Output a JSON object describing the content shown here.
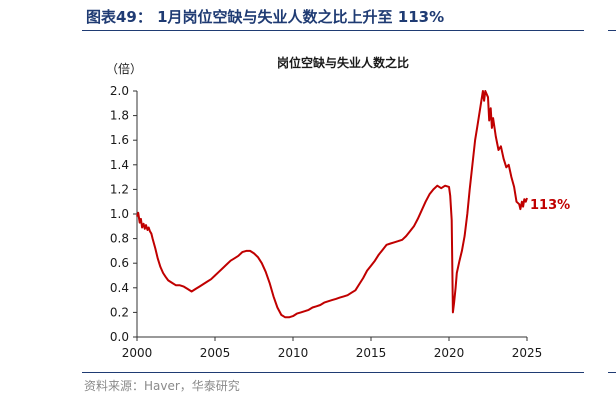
{
  "figure": {
    "title": "图表49： 1月岗位空缺与失业人数之比上升至 113%",
    "source": "资料来源：Haver，华泰研究"
  },
  "chart_data": {
    "type": "line",
    "title": "岗位空缺与失业人数之比",
    "ylabel": "（倍）",
    "xlim": [
      2000,
      2025
    ],
    "ylim": [
      0,
      2.0
    ],
    "xticks": [
      "2000",
      "2005",
      "2010",
      "2015",
      "2020",
      "2025"
    ],
    "yticks": [
      "0.0",
      "0.2",
      "0.4",
      "0.6",
      "0.8",
      "1.0",
      "1.2",
      "1.4",
      "1.6",
      "1.8",
      "2.0"
    ],
    "annotation": "113%",
    "series": [
      {
        "color": "#c00000",
        "points": [
          [
            2000.0,
            0.98
          ],
          [
            2000.08,
            1.01
          ],
          [
            2000.17,
            0.93
          ],
          [
            2000.25,
            0.96
          ],
          [
            2000.33,
            0.89
          ],
          [
            2000.42,
            0.92
          ],
          [
            2000.5,
            0.88
          ],
          [
            2000.58,
            0.91
          ],
          [
            2000.67,
            0.87
          ],
          [
            2000.75,
            0.89
          ],
          [
            2000.83,
            0.86
          ],
          [
            2000.92,
            0.84
          ],
          [
            2001.0,
            0.8
          ],
          [
            2001.17,
            0.72
          ],
          [
            2001.33,
            0.64
          ],
          [
            2001.5,
            0.57
          ],
          [
            2001.67,
            0.52
          ],
          [
            2001.83,
            0.49
          ],
          [
            2002.0,
            0.46
          ],
          [
            2002.25,
            0.44
          ],
          [
            2002.5,
            0.42
          ],
          [
            2002.75,
            0.42
          ],
          [
            2003.0,
            0.41
          ],
          [
            2003.25,
            0.39
          ],
          [
            2003.5,
            0.37
          ],
          [
            2003.75,
            0.39
          ],
          [
            2004.0,
            0.41
          ],
          [
            2004.25,
            0.43
          ],
          [
            2004.5,
            0.45
          ],
          [
            2004.75,
            0.47
          ],
          [
            2005.0,
            0.5
          ],
          [
            2005.25,
            0.53
          ],
          [
            2005.5,
            0.56
          ],
          [
            2005.75,
            0.59
          ],
          [
            2006.0,
            0.62
          ],
          [
            2006.25,
            0.64
          ],
          [
            2006.5,
            0.66
          ],
          [
            2006.75,
            0.69
          ],
          [
            2007.0,
            0.7
          ],
          [
            2007.25,
            0.7
          ],
          [
            2007.5,
            0.68
          ],
          [
            2007.75,
            0.65
          ],
          [
            2008.0,
            0.6
          ],
          [
            2008.25,
            0.53
          ],
          [
            2008.5,
            0.44
          ],
          [
            2008.75,
            0.33
          ],
          [
            2009.0,
            0.24
          ],
          [
            2009.25,
            0.18
          ],
          [
            2009.5,
            0.16
          ],
          [
            2009.75,
            0.16
          ],
          [
            2010.0,
            0.17
          ],
          [
            2010.25,
            0.19
          ],
          [
            2010.5,
            0.2
          ],
          [
            2010.75,
            0.21
          ],
          [
            2011.0,
            0.22
          ],
          [
            2011.25,
            0.24
          ],
          [
            2011.5,
            0.25
          ],
          [
            2011.75,
            0.26
          ],
          [
            2012.0,
            0.28
          ],
          [
            2012.25,
            0.29
          ],
          [
            2012.5,
            0.3
          ],
          [
            2012.75,
            0.31
          ],
          [
            2013.0,
            0.32
          ],
          [
            2013.25,
            0.33
          ],
          [
            2013.5,
            0.34
          ],
          [
            2013.75,
            0.36
          ],
          [
            2014.0,
            0.38
          ],
          [
            2014.25,
            0.43
          ],
          [
            2014.5,
            0.48
          ],
          [
            2014.75,
            0.54
          ],
          [
            2015.0,
            0.58
          ],
          [
            2015.25,
            0.62
          ],
          [
            2015.5,
            0.67
          ],
          [
            2015.75,
            0.71
          ],
          [
            2016.0,
            0.75
          ],
          [
            2016.25,
            0.76
          ],
          [
            2016.5,
            0.77
          ],
          [
            2016.75,
            0.78
          ],
          [
            2017.0,
            0.79
          ],
          [
            2017.25,
            0.82
          ],
          [
            2017.5,
            0.86
          ],
          [
            2017.75,
            0.9
          ],
          [
            2018.0,
            0.96
          ],
          [
            2018.25,
            1.03
          ],
          [
            2018.5,
            1.1
          ],
          [
            2018.75,
            1.16
          ],
          [
            2019.0,
            1.2
          ],
          [
            2019.25,
            1.23
          ],
          [
            2019.5,
            1.21
          ],
          [
            2019.75,
            1.23
          ],
          [
            2020.0,
            1.22
          ],
          [
            2020.08,
            1.15
          ],
          [
            2020.17,
            0.95
          ],
          [
            2020.25,
            0.2
          ],
          [
            2020.33,
            0.28
          ],
          [
            2020.42,
            0.4
          ],
          [
            2020.5,
            0.52
          ],
          [
            2020.67,
            0.62
          ],
          [
            2020.83,
            0.7
          ],
          [
            2021.0,
            0.82
          ],
          [
            2021.17,
            1.0
          ],
          [
            2021.33,
            1.2
          ],
          [
            2021.5,
            1.4
          ],
          [
            2021.67,
            1.6
          ],
          [
            2021.83,
            1.72
          ],
          [
            2022.0,
            1.86
          ],
          [
            2022.17,
            2.0
          ],
          [
            2022.25,
            1.92
          ],
          [
            2022.33,
            2.0
          ],
          [
            2022.5,
            1.95
          ],
          [
            2022.58,
            1.76
          ],
          [
            2022.67,
            1.86
          ],
          [
            2022.75,
            1.7
          ],
          [
            2022.83,
            1.78
          ],
          [
            2023.0,
            1.63
          ],
          [
            2023.17,
            1.52
          ],
          [
            2023.33,
            1.55
          ],
          [
            2023.5,
            1.45
          ],
          [
            2023.67,
            1.38
          ],
          [
            2023.83,
            1.4
          ],
          [
            2024.0,
            1.3
          ],
          [
            2024.17,
            1.22
          ],
          [
            2024.33,
            1.1
          ],
          [
            2024.5,
            1.08
          ],
          [
            2024.58,
            1.04
          ],
          [
            2024.67,
            1.1
          ],
          [
            2024.75,
            1.06
          ],
          [
            2024.83,
            1.12
          ],
          [
            2024.92,
            1.1
          ],
          [
            2025.0,
            1.13
          ]
        ]
      }
    ]
  }
}
